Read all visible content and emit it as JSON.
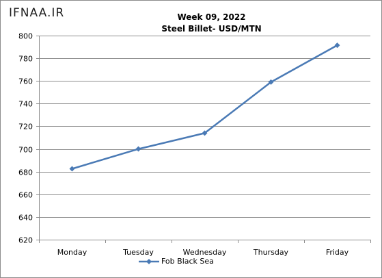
{
  "logo": "IFNAA.IR",
  "title_line1": "Week 09, 2022",
  "title_line2": "Steel Billet- USD/MTN",
  "colors": {
    "series": "#4a7ab5",
    "grid": "#8c8c8c",
    "axis": "#8c8c8c"
  },
  "chart_data": {
    "type": "line",
    "title": "Week 09, 2022 Steel Billet- USD/MTN",
    "categories": [
      "Monday",
      "Tuesday",
      "Wednesday",
      "Thursday",
      "Friday"
    ],
    "series": [
      {
        "name": "Fob Black Sea",
        "values": [
          682.5,
          700,
          714,
          759,
          791.5
        ],
        "marker": "diamond"
      }
    ],
    "ylim": [
      620,
      800
    ],
    "yticks": [
      620,
      640,
      660,
      680,
      700,
      720,
      740,
      760,
      780,
      800
    ],
    "grid": true,
    "legend": "bottom"
  }
}
